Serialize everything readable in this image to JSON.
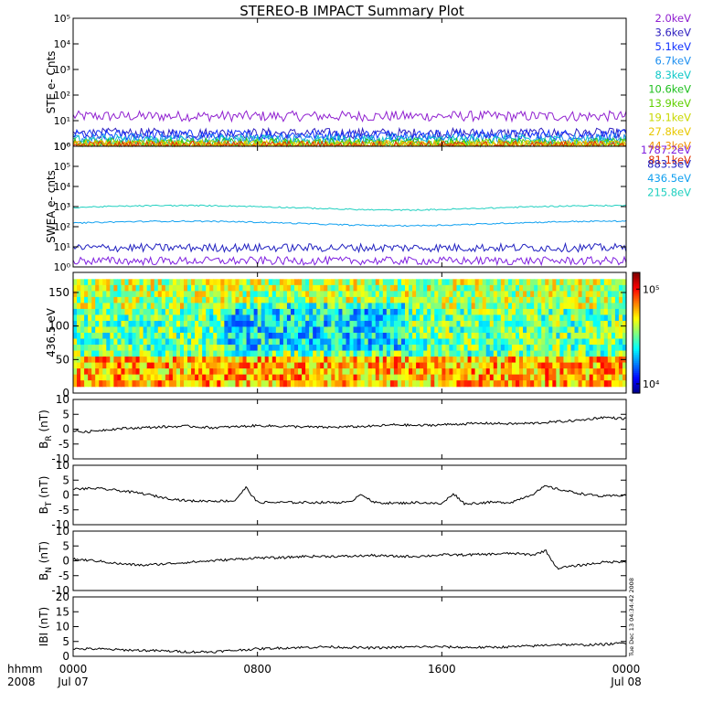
{
  "title": "STEREO-B IMPACT Summary Plot",
  "stamp": "Tue Dec 13 04:34:42 2008",
  "time_axis": {
    "row1_label": "hhmm",
    "row2_label": "2008",
    "ticks": [
      {
        "hour": 0,
        "label": "0000",
        "date": "Jul 07"
      },
      {
        "hour": 8,
        "label": "0800",
        "date": ""
      },
      {
        "hour": 16,
        "label": "1600",
        "date": ""
      },
      {
        "hour": 24,
        "label": "0000",
        "date": "Jul 08"
      }
    ],
    "range_hours": [
      0,
      24
    ]
  },
  "chart_data": [
    {
      "type": "line",
      "ylabel": "STE e- Cnts",
      "yscale": "log",
      "ylim": [
        1,
        100000
      ],
      "ytick_labels": [
        "10⁰",
        "10¹",
        "10²",
        "10³",
        "10⁴",
        "10⁵"
      ],
      "legend_placement": "right",
      "series": [
        {
          "name": "2.0keV",
          "color": "#9020d0",
          "level": 15
        },
        {
          "name": "3.6keV",
          "color": "#3020c0",
          "level": 3.2
        },
        {
          "name": "5.1keV",
          "color": "#1030ff",
          "level": 2.8
        },
        {
          "name": "6.7keV",
          "color": "#2090f0",
          "level": 2.0
        },
        {
          "name": "8.3keV",
          "color": "#10c8c8",
          "level": 1.7
        },
        {
          "name": "10.6keV",
          "color": "#20c020",
          "level": 1.3
        },
        {
          "name": "13.9keV",
          "color": "#60d000",
          "level": 1.2
        },
        {
          "name": "19.1keV",
          "color": "#c8d800",
          "level": 1.1
        },
        {
          "name": "27.8keV",
          "color": "#e8c800",
          "level": 1.05
        },
        {
          "name": "44.3keV",
          "color": "#f09000",
          "level": 1.02
        },
        {
          "name": "81.1keV",
          "color": "#e03000",
          "level": 1.01
        }
      ]
    },
    {
      "type": "line",
      "ylabel": "SWEA e- cnts",
      "yscale": "log",
      "ylim": [
        1,
        1000000
      ],
      "ytick_labels": [
        "10⁰",
        "10¹",
        "10²",
        "10³",
        "10⁴",
        "10⁵",
        "10⁶"
      ],
      "legend_placement": "right",
      "series": [
        {
          "name": "1787.2eV",
          "color": "#8020e0",
          "level": 2
        },
        {
          "name": "883.3eV",
          "color": "#2020c0",
          "level": 9
        },
        {
          "name": "436.5eV",
          "color": "#10a0f0",
          "level": 150
        },
        {
          "name": "215.8eV",
          "color": "#20d0c0",
          "level": 900
        }
      ]
    },
    {
      "type": "heatmap",
      "ylabel": "436.5 eV",
      "ylim": [
        0,
        180
      ],
      "y_ticks": [
        0,
        50,
        100,
        150
      ],
      "y_data_range": [
        10,
        170
      ],
      "colorbar": {
        "tick_labels": [
          "10⁴",
          "10⁵"
        ],
        "range": [
          8000,
          150000
        ]
      },
      "description_levels": [
        {
          "pitch_min": 10,
          "pitch_max": 50,
          "dominant": "yellow"
        },
        {
          "pitch_min": 50,
          "pitch_max": 130,
          "dominant": "green-cyan"
        },
        {
          "pitch_min": 130,
          "pitch_max": 170,
          "dominant": "green"
        }
      ]
    },
    {
      "type": "line",
      "ylabel": "B_R (nT)",
      "ylabel_main": "B",
      "ylabel_sub": "R",
      "ylabel_unit": "(nT)",
      "ylim": [
        -10,
        10
      ],
      "y_ticks": [
        -10,
        -5,
        0,
        5,
        10
      ],
      "x": [
        0,
        0.5,
        1,
        2,
        3,
        4,
        5,
        6,
        7,
        8,
        9,
        10,
        11,
        12,
        13,
        14,
        15,
        16,
        17,
        18,
        19,
        20,
        21,
        22,
        23,
        24
      ],
      "values": [
        -0.5,
        -1,
        -0.5,
        0.2,
        0.5,
        0.8,
        1,
        0.5,
        0.8,
        1.2,
        1.0,
        0.8,
        0.6,
        0.8,
        1.0,
        1.5,
        1.2,
        1.5,
        1.8,
        2.0,
        1.8,
        2.0,
        2.5,
        3.0,
        4.0,
        3.5
      ]
    },
    {
      "type": "line",
      "ylabel": "B_T (nT)",
      "ylabel_main": "B",
      "ylabel_sub": "T",
      "ylabel_unit": "(nT)",
      "ylim": [
        -10,
        10
      ],
      "y_ticks": [
        -10,
        -5,
        0,
        5,
        10
      ],
      "x": [
        0,
        1,
        2,
        3,
        4,
        5,
        6,
        7,
        7.5,
        8,
        9,
        10,
        11,
        12,
        12.5,
        13,
        14,
        15,
        16,
        16.5,
        17,
        18,
        19,
        20,
        20.5,
        21,
        22,
        23,
        24
      ],
      "values": [
        2,
        2.2,
        1.5,
        0.5,
        -1,
        -2,
        -2,
        -2,
        2.5,
        -2.5,
        -2.5,
        -2.5,
        -2.5,
        -2.5,
        0.5,
        -2.5,
        -2.8,
        -2.5,
        -3,
        0.5,
        -3,
        -2.5,
        -2.5,
        0.5,
        3,
        2,
        0.5,
        -0.5,
        0
      ]
    },
    {
      "type": "line",
      "ylabel": "B_N (nT)",
      "ylabel_main": "B",
      "ylabel_sub": "N",
      "ylabel_unit": "(nT)",
      "ylim": [
        -10,
        10
      ],
      "y_ticks": [
        -10,
        -5,
        0,
        5,
        10
      ],
      "x": [
        0,
        1,
        2,
        3,
        4,
        5,
        6,
        7,
        8,
        9,
        10,
        11,
        12,
        13,
        14,
        15,
        16,
        17,
        18,
        19,
        20,
        20.5,
        21,
        22,
        23,
        24
      ],
      "values": [
        0.5,
        0,
        -1,
        -1.5,
        -1,
        -0.5,
        0,
        0.5,
        1,
        1,
        1.5,
        1.5,
        1.5,
        1.8,
        1.5,
        1.5,
        2,
        2,
        2.2,
        2.5,
        2.0,
        3.5,
        -2.5,
        -1.5,
        -0.5,
        -0.2
      ]
    },
    {
      "type": "line",
      "ylabel": "|B| (nT)",
      "ylabel_text": "IBI (nT)",
      "ylim": [
        0,
        20
      ],
      "y_ticks": [
        0,
        5,
        10,
        15,
        20
      ],
      "x": [
        0,
        1,
        2,
        3,
        4,
        5,
        6,
        7,
        8,
        9,
        10,
        11,
        12,
        13,
        14,
        15,
        16,
        17,
        18,
        19,
        20,
        21,
        22,
        23,
        24
      ],
      "values": [
        2.5,
        2.5,
        2.2,
        2.0,
        1.8,
        1.5,
        1.5,
        2.0,
        2.5,
        2.8,
        3.0,
        3.2,
        3.0,
        2.8,
        3.0,
        3.2,
        3.2,
        3.0,
        3.0,
        3.2,
        3.5,
        4.0,
        3.8,
        4.0,
        4.5
      ]
    }
  ]
}
